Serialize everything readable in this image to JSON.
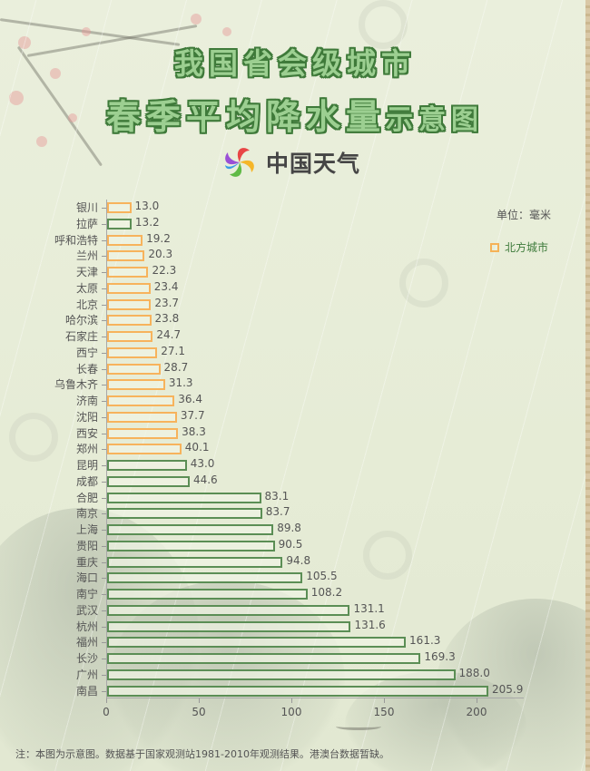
{
  "header": {
    "title_line1": "我国省会级城市",
    "title_line2_main": "春季平均降水量",
    "title_line2_small": "示意图",
    "logo_text": "中国天气",
    "logo_icon": "china-weather-pinwheel-logo"
  },
  "unit_label": "单位：毫米",
  "legend": {
    "label": "北方城市",
    "color": "#f7b35c"
  },
  "footnote": "注：本图为示意图。数据基于国家观测站1981-2010年观测结果。港澳台数据暂缺。",
  "colors": {
    "north": "#f7b35c",
    "south": "#5b8e55",
    "title_fill": "#9ccf91",
    "title_stroke": "#3f7a3a"
  },
  "chart_data": {
    "type": "bar",
    "orientation": "horizontal",
    "title": "我国省会级城市春季平均降水量示意图",
    "xlabel": "",
    "ylabel": "",
    "unit": "毫米",
    "xlim": [
      0,
      225
    ],
    "xticks": [
      0,
      50,
      100,
      150,
      200
    ],
    "legend": [
      "北方城市"
    ],
    "categories": [
      "银川",
      "拉萨",
      "呼和浩特",
      "兰州",
      "天津",
      "太原",
      "北京",
      "哈尔滨",
      "石家庄",
      "西宁",
      "长春",
      "乌鲁木齐",
      "济南",
      "沈阳",
      "西安",
      "郑州",
      "昆明",
      "成都",
      "合肥",
      "南京",
      "上海",
      "贵阳",
      "重庆",
      "海口",
      "南宁",
      "武汉",
      "杭州",
      "福州",
      "长沙",
      "广州",
      "南昌"
    ],
    "values": [
      13.0,
      13.2,
      19.2,
      20.3,
      22.3,
      23.4,
      23.7,
      23.8,
      24.7,
      27.1,
      28.7,
      31.3,
      36.4,
      37.7,
      38.3,
      40.1,
      43.0,
      44.6,
      83.1,
      83.7,
      89.8,
      90.5,
      94.8,
      105.5,
      108.2,
      131.1,
      131.6,
      161.3,
      169.3,
      188.0,
      205.9
    ],
    "value_labels": [
      "13.0",
      "13.2",
      "19.2",
      "20.3",
      "22.3",
      "23.4",
      "23.7",
      "23.8",
      "24.7",
      "27.1",
      "28.7",
      "31.3",
      "36.4",
      "37.7",
      "38.3",
      "40.1",
      "43.0",
      "44.6",
      "83.1",
      "83.7",
      "89.8",
      "90.5",
      "94.8",
      "105.5",
      "108.2",
      "131.1",
      "131.6",
      "161.3",
      "169.3",
      "188.0",
      "205.9"
    ],
    "groups": [
      "north",
      "south",
      "north",
      "north",
      "north",
      "north",
      "north",
      "north",
      "north",
      "north",
      "north",
      "north",
      "north",
      "north",
      "north",
      "north",
      "south",
      "south",
      "south",
      "south",
      "south",
      "south",
      "south",
      "south",
      "south",
      "south",
      "south",
      "south",
      "south",
      "south",
      "south"
    ]
  }
}
